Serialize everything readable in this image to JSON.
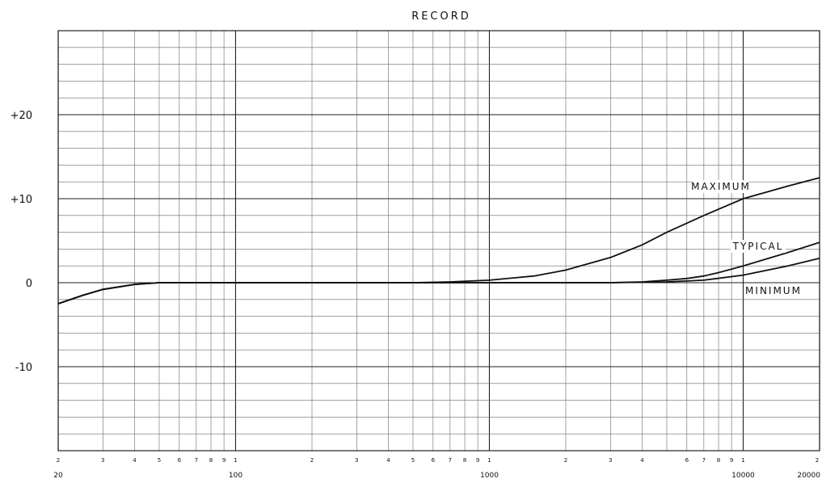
{
  "chart_data": {
    "type": "line",
    "title": "RECORD",
    "xlabel": "",
    "ylabel": "",
    "x_scale": "log",
    "xlim": [
      20,
      20000
    ],
    "ylim": [
      -20,
      30
    ],
    "grid": true,
    "y_ticks": [
      {
        "value": 20,
        "label": "+20"
      },
      {
        "value": 10,
        "label": "+10"
      },
      {
        "value": 0,
        "label": "0"
      },
      {
        "value": -10,
        "label": "-10"
      }
    ],
    "x_major_ticks": [
      {
        "value": 20,
        "label": "20"
      },
      {
        "value": 100,
        "label": "100"
      },
      {
        "value": 1000,
        "label": "1000"
      },
      {
        "value": 10000,
        "label": "10000"
      },
      {
        "value": 20000,
        "label": "20000"
      }
    ],
    "x_minor_ticks": [
      {
        "value": 20,
        "label": "2"
      },
      {
        "value": 30,
        "label": "3"
      },
      {
        "value": 40,
        "label": "4"
      },
      {
        "value": 50,
        "label": "5"
      },
      {
        "value": 60,
        "label": "6"
      },
      {
        "value": 70,
        "label": "7"
      },
      {
        "value": 80,
        "label": "8"
      },
      {
        "value": 90,
        "label": "9"
      },
      {
        "value": 100,
        "label": "1"
      },
      {
        "value": 200,
        "label": "2"
      },
      {
        "value": 300,
        "label": "3"
      },
      {
        "value": 400,
        "label": "4"
      },
      {
        "value": 500,
        "label": "5"
      },
      {
        "value": 600,
        "label": "6"
      },
      {
        "value": 700,
        "label": "7"
      },
      {
        "value": 800,
        "label": "8"
      },
      {
        "value": 900,
        "label": "9"
      },
      {
        "value": 1000,
        "label": "1"
      },
      {
        "value": 2000,
        "label": "2"
      },
      {
        "value": 3000,
        "label": "3"
      },
      {
        "value": 4000,
        "label": "4"
      },
      {
        "value": 6000,
        "label": "6"
      },
      {
        "value": 7000,
        "label": "7"
      },
      {
        "value": 8000,
        "label": "8"
      },
      {
        "value": 9000,
        "label": "9"
      },
      {
        "value": 10000,
        "label": "1"
      },
      {
        "value": 20000,
        "label": "2"
      }
    ],
    "series": [
      {
        "name": "MAXIMUM",
        "x": [
          20,
          25,
          30,
          40,
          50,
          60,
          100,
          200,
          500,
          700,
          1000,
          1500,
          2000,
          3000,
          4000,
          5000,
          7000,
          10000,
          15000,
          20000
        ],
        "y": [
          -2.5,
          -1.5,
          -0.8,
          -0.2,
          0,
          0,
          0,
          0,
          0,
          0.1,
          0.3,
          0.8,
          1.5,
          3,
          4.5,
          6,
          8,
          10,
          11.5,
          12.5
        ]
      },
      {
        "name": "TYPICAL",
        "x": [
          20,
          25,
          30,
          40,
          50,
          60,
          100,
          1000,
          2000,
          3000,
          4000,
          5000,
          6000,
          7000,
          8000,
          10000,
          15000,
          20000
        ],
        "y": [
          -2.5,
          -1.5,
          -0.8,
          -0.2,
          0,
          0,
          0,
          0,
          0,
          0,
          0.1,
          0.3,
          0.5,
          0.8,
          1.2,
          2,
          3.6,
          4.8
        ]
      },
      {
        "name": "MINIMUM",
        "x": [
          20,
          25,
          30,
          40,
          50,
          60,
          100,
          1000,
          2000,
          3000,
          5000,
          7000,
          10000,
          15000,
          20000
        ],
        "y": [
          -2.5,
          -1.5,
          -0.8,
          -0.2,
          0,
          0,
          0,
          0,
          0,
          0,
          0.1,
          0.3,
          0.9,
          2,
          2.9
        ]
      }
    ]
  }
}
